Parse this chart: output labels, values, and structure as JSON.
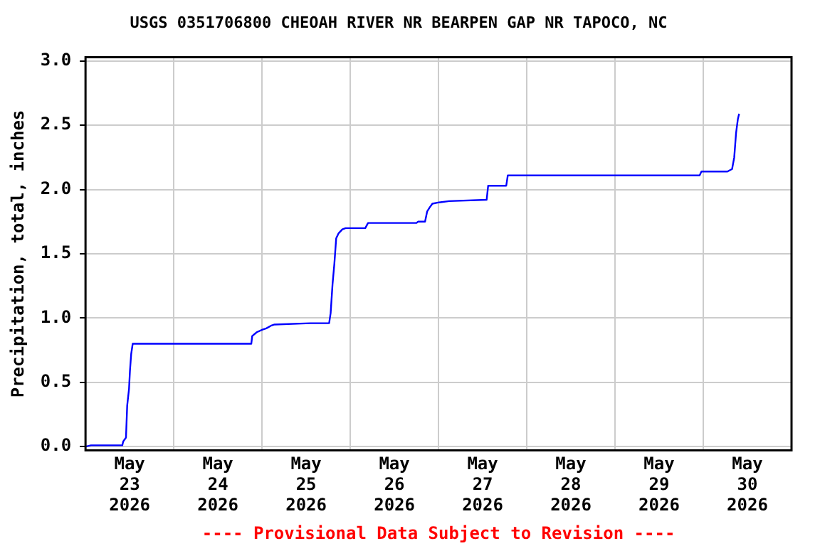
{
  "chart_data": {
    "type": "line",
    "title": "USGS 0351706800 CHEOAH RIVER NR BEARPEN GAP NR TAPOCO, NC",
    "ylabel": "Precipitation, total, inches",
    "annotations": [
      "---- Provisional Data Subject to Revision ----"
    ],
    "x": [
      "2026-05-23T00:00",
      "2026-05-23T01:30",
      "2026-05-23T10:00",
      "2026-05-23T10:15",
      "2026-05-23T11:00",
      "2026-05-23T11:20",
      "2026-05-23T11:50",
      "2026-05-23T12:05",
      "2026-05-23T12:25",
      "2026-05-23T12:50",
      "2026-05-24T21:05",
      "2026-05-24T21:20",
      "2026-05-24T22:35",
      "2026-05-25T00:08",
      "2026-05-25T01:10",
      "2026-05-25T02:25",
      "2026-05-25T03:25",
      "2026-05-25T13:10",
      "2026-05-25T18:15",
      "2026-05-25T18:40",
      "2026-05-25T19:10",
      "2026-05-25T19:40",
      "2026-05-25T20:10",
      "2026-05-25T20:50",
      "2026-05-25T21:50",
      "2026-05-25T22:45",
      "2026-05-26T04:05",
      "2026-05-26T04:50",
      "2026-05-26T18:00",
      "2026-05-26T18:25",
      "2026-05-26T20:20",
      "2026-05-26T20:55",
      "2026-05-26T21:35",
      "2026-05-26T22:20",
      "2026-05-27T00:08",
      "2026-05-27T02:55",
      "2026-05-27T13:05",
      "2026-05-27T13:30",
      "2026-05-27T18:25",
      "2026-05-27T18:50",
      "2026-05-29T23:00",
      "2026-05-29T23:30",
      "2026-05-30T06:35",
      "2026-05-30T07:50",
      "2026-05-30T08:25",
      "2026-05-30T08:55",
      "2026-05-30T09:25",
      "2026-05-30T09:45"
    ],
    "series": [
      {
        "color": "#0000ff",
        "values": [
          0.0,
          0.01,
          0.01,
          0.04,
          0.07,
          0.32,
          0.45,
          0.59,
          0.72,
          0.8,
          0.8,
          0.86,
          0.89,
          0.91,
          0.92,
          0.94,
          0.95,
          0.96,
          0.96,
          1.04,
          1.26,
          1.42,
          1.62,
          1.66,
          1.69,
          1.7,
          1.7,
          1.74,
          1.74,
          1.75,
          1.75,
          1.83,
          1.86,
          1.89,
          1.9,
          1.91,
          1.92,
          2.03,
          2.03,
          2.11,
          2.11,
          2.14,
          2.14,
          2.16,
          2.25,
          2.44,
          2.55,
          2.59
        ]
      }
    ],
    "xlim": [
      "2026-05-23T00:00",
      "2026-05-31T00:00"
    ],
    "xticks": [
      {
        "value": "2026-05-23T00:00",
        "label": null
      },
      {
        "value": "2026-05-23T12:00",
        "label": "May\n23\n2026"
      },
      {
        "value": "2026-05-24T00:00",
        "label": null
      },
      {
        "value": "2026-05-24T12:00",
        "label": "May\n24\n2026"
      },
      {
        "value": "2026-05-25T00:00",
        "label": null
      },
      {
        "value": "2026-05-25T12:00",
        "label": "May\n25\n2026"
      },
      {
        "value": "2026-05-26T00:00",
        "label": null
      },
      {
        "value": "2026-05-26T12:00",
        "label": "May\n26\n2026"
      },
      {
        "value": "2026-05-27T00:00",
        "label": null
      },
      {
        "value": "2026-05-27T12:00",
        "label": "May\n27\n2026"
      },
      {
        "value": "2026-05-28T00:00",
        "label": null
      },
      {
        "value": "2026-05-28T12:00",
        "label": "May\n28\n2026"
      },
      {
        "value": "2026-05-29T00:00",
        "label": null
      },
      {
        "value": "2026-05-29T12:00",
        "label": "May\n29\n2026"
      },
      {
        "value": "2026-05-30T00:00",
        "label": null
      },
      {
        "value": "2026-05-30T12:00",
        "label": "May\n30\n2026"
      },
      {
        "value": "2026-05-31T00:00",
        "label": null
      }
    ],
    "ylim": [
      -0.03,
      3.03
    ],
    "yticks": [
      {
        "value": 0,
        "label": "0.0"
      },
      {
        "value": 0.5,
        "label": "0.5"
      },
      {
        "value": 1,
        "label": "1.0"
      },
      {
        "value": 1.5,
        "label": "1.5"
      },
      {
        "value": 2,
        "label": "2.0"
      },
      {
        "value": 2.5,
        "label": "2.5"
      },
      {
        "value": 3,
        "label": "3.0"
      }
    ],
    "grid": true,
    "marker": "none",
    "line_style": "solid",
    "legend": false
  }
}
